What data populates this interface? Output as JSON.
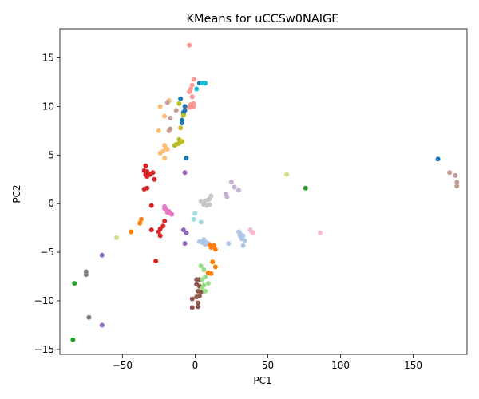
{
  "chart_data": {
    "type": "scatter",
    "title": "KMeans for uCCSw0NAIGE",
    "xlabel": "PC1",
    "ylabel": "PC2",
    "xlim": [
      -93,
      187
    ],
    "ylim": [
      -15.5,
      18
    ],
    "xticks": [
      -50,
      0,
      50,
      100,
      150
    ],
    "yticks": [
      -15,
      -10,
      -5,
      0,
      5,
      10,
      15
    ],
    "grid": false,
    "legend": "none",
    "series": [
      {
        "color": "#1f77b4",
        "points": [
          [
            -7,
            9.6
          ],
          [
            -8,
            9.2
          ],
          [
            -9,
            8.6
          ],
          [
            -9,
            8.3
          ],
          [
            -7,
            10
          ],
          [
            -10,
            10.8
          ],
          [
            -6,
            4.7
          ],
          [
            -8,
            9.4
          ],
          [
            3,
            12.4
          ],
          [
            167,
            4.6
          ]
        ]
      },
      {
        "color": "#ff7f0e",
        "points": [
          [
            -37,
            -1.6
          ],
          [
            -38,
            -2
          ],
          [
            -44,
            -2.9
          ],
          [
            10,
            -4.2
          ],
          [
            11,
            -4.5
          ],
          [
            13,
            -4.3
          ],
          [
            14,
            -4.7
          ],
          [
            12,
            -6
          ],
          [
            14,
            -6.5
          ],
          [
            11,
            -7.2
          ],
          [
            9,
            -7.1
          ]
        ]
      },
      {
        "color": "#2ca02c",
        "points": [
          [
            -83,
            -8.2
          ],
          [
            -84,
            -14
          ],
          [
            76,
            1.6
          ]
        ]
      },
      {
        "color": "#d62728",
        "points": [
          [
            -34,
            3.9
          ],
          [
            -33,
            3.3
          ],
          [
            -31,
            3
          ],
          [
            -29,
            3.2
          ],
          [
            -34,
            3
          ],
          [
            -35,
            3.4
          ],
          [
            -33,
            2.8
          ],
          [
            -28,
            2.5
          ],
          [
            -33,
            1.6
          ],
          [
            -35,
            1.5
          ],
          [
            -30,
            -0.2
          ],
          [
            -21,
            -1.8
          ],
          [
            -22,
            -2.3
          ],
          [
            -24,
            -2.6
          ],
          [
            -25,
            -2.9
          ],
          [
            -30,
            -2.7
          ],
          [
            -24,
            -3.3
          ],
          [
            -27,
            -5.9
          ]
        ]
      },
      {
        "color": "#9467bd",
        "points": [
          [
            -7,
            3.2
          ],
          [
            -64,
            -5.3
          ],
          [
            -64,
            -12.5
          ],
          [
            -8,
            -2.7
          ],
          [
            -6,
            -3
          ],
          [
            -7,
            -4.1
          ]
        ]
      },
      {
        "color": "#8c564b",
        "points": [
          [
            1,
            -7.8
          ],
          [
            3,
            -7.8
          ],
          [
            1,
            -8.3
          ],
          [
            3,
            -8.5
          ],
          [
            2,
            -9
          ],
          [
            4,
            -9.1
          ],
          [
            1,
            -9.6
          ],
          [
            3,
            -9.5
          ],
          [
            -2,
            -9.8
          ],
          [
            2,
            -10.2
          ],
          [
            -2,
            -10.7
          ],
          [
            2,
            -10.6
          ]
        ]
      },
      {
        "color": "#e377c2",
        "points": [
          [
            -21,
            -0.3
          ],
          [
            -20,
            -0.6
          ],
          [
            -19,
            -0.9
          ],
          [
            -17,
            -1
          ],
          [
            -21,
            -0.5
          ],
          [
            -18,
            -0.8
          ],
          [
            -16,
            -1.1
          ]
        ]
      },
      {
        "color": "#7f7f7f",
        "points": [
          [
            -75,
            -7
          ],
          [
            -75,
            -7.3
          ],
          [
            -73,
            -11.7
          ]
        ]
      },
      {
        "color": "#bcbd22",
        "points": [
          [
            -13,
            6.1
          ],
          [
            -11,
            6.6
          ],
          [
            -9,
            6.4
          ],
          [
            -11,
            6.2
          ],
          [
            -14,
            6
          ],
          [
            -10,
            7.8
          ],
          [
            -8,
            9.1
          ],
          [
            -11,
            10.3
          ]
        ]
      },
      {
        "color": "#17becf",
        "points": [
          [
            5,
            12.4
          ],
          [
            7,
            12.4
          ],
          [
            1,
            11.8
          ]
        ]
      },
      {
        "color": "#aec7e8",
        "points": [
          [
            30,
            -2.9
          ],
          [
            31,
            -3.1
          ],
          [
            33,
            -3.3
          ],
          [
            32,
            -3.6
          ],
          [
            31,
            -3.3
          ],
          [
            34,
            -3.8
          ],
          [
            33,
            -4.3
          ],
          [
            23,
            -4.1
          ],
          [
            6,
            -3.7
          ],
          [
            5,
            -4
          ],
          [
            8,
            -4
          ],
          [
            7,
            -4.2
          ],
          [
            3,
            -3.9
          ]
        ]
      },
      {
        "color": "#ffbb78",
        "points": [
          [
            -24,
            10
          ],
          [
            -20,
            5.7
          ],
          [
            -22,
            5.4
          ],
          [
            -19,
            5.6
          ],
          [
            -21,
            6
          ],
          [
            -24,
            5.2
          ],
          [
            -21,
            4.7
          ],
          [
            -25,
            7.5
          ],
          [
            -21,
            9
          ],
          [
            -18,
            10.6
          ]
        ]
      },
      {
        "color": "#98df8a",
        "points": [
          [
            4,
            -6.4
          ],
          [
            6,
            -6.8
          ],
          [
            7,
            -7.5
          ],
          [
            5,
            -7.8
          ],
          [
            9,
            -8.2
          ],
          [
            6,
            -8.4
          ],
          [
            5,
            -8.7
          ],
          [
            7,
            -9
          ]
        ]
      },
      {
        "color": "#ff9896",
        "points": [
          [
            -4,
            16.3
          ],
          [
            -1,
            12.8
          ],
          [
            -2,
            12.2
          ],
          [
            -3,
            11.8
          ],
          [
            -4,
            11.5
          ],
          [
            -2,
            11
          ],
          [
            -1,
            10.3
          ],
          [
            -3,
            10.2
          ],
          [
            -4,
            9.9
          ],
          [
            -1,
            10
          ]
        ]
      },
      {
        "color": "#c5b0d5",
        "points": [
          [
            25,
            2.2
          ],
          [
            27,
            1.7
          ],
          [
            21,
            1
          ],
          [
            30,
            1.4
          ],
          [
            22,
            0.7
          ]
        ]
      },
      {
        "color": "#c49c94",
        "points": [
          [
            -18,
            7.5
          ],
          [
            -17,
            7.7
          ],
          [
            -17,
            8.8
          ],
          [
            -19,
            10.4
          ],
          [
            -13,
            9.6
          ],
          [
            175,
            3.2
          ],
          [
            179,
            2.9
          ],
          [
            180,
            2.2
          ],
          [
            180,
            1.8
          ]
        ]
      },
      {
        "color": "#f7b6d2",
        "points": [
          [
            38,
            -2.7
          ],
          [
            39,
            -2.9
          ],
          [
            40,
            -3
          ],
          [
            86,
            -3
          ]
        ]
      },
      {
        "color": "#c7c7c7",
        "points": [
          [
            11,
            0.8
          ],
          [
            10,
            0.5
          ],
          [
            9,
            0.4
          ],
          [
            7,
            0.3
          ],
          [
            10,
            -0.1
          ],
          [
            8,
            -0.2
          ],
          [
            6,
            -0.1
          ],
          [
            4,
            0.2
          ]
        ]
      },
      {
        "color": "#dbdb8d",
        "points": [
          [
            -54,
            -3.5
          ],
          [
            63,
            3
          ]
        ]
      },
      {
        "color": "#9edae5",
        "points": [
          [
            0,
            -1
          ],
          [
            -1,
            -1.6
          ],
          [
            4,
            -1.9
          ]
        ]
      }
    ]
  }
}
